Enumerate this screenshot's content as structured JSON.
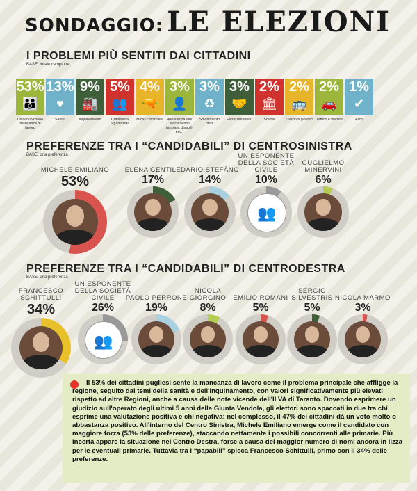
{
  "title": {
    "part1": "SONDAGGIO:",
    "part2": "LE ELEZIONI"
  },
  "problems": {
    "heading": "I PROBLEMI PIÙ SENTITI DAI CITTADINI",
    "base": "BASE: totale campione",
    "items": [
      {
        "pct": "53%",
        "label": "Disoccupazione mancanza di lavoro",
        "color": "#9bb63a",
        "icon": "people-icon",
        "glyph": "👪"
      },
      {
        "pct": "13%",
        "label": "Sanità",
        "color": "#6fb2c9",
        "icon": "heart-icon",
        "glyph": "♥"
      },
      {
        "pct": "9%",
        "label": "Inquinamento",
        "color": "#3f5f3a",
        "icon": "factory-icon",
        "glyph": "🏭"
      },
      {
        "pct": "5%",
        "label": "Criminalità organizzata",
        "color": "#d0332d",
        "icon": "crowd-icon",
        "glyph": "👥"
      },
      {
        "pct": "4%",
        "label": "Micro-criminalità",
        "color": "#e8b52a",
        "icon": "gun-icon",
        "glyph": "🔫"
      },
      {
        "pct": "3%",
        "label": "Assistenza alle fasce deboli (anziani, disabili, ecc.)",
        "color": "#9bb63a",
        "icon": "person-icon",
        "glyph": "👤"
      },
      {
        "pct": "3%",
        "label": "Smaltimento rifiuti",
        "color": "#6fb2c9",
        "icon": "recycle-icon",
        "glyph": "♻"
      },
      {
        "pct": "3%",
        "label": "Extracomunitari",
        "color": "#3f5f3a",
        "icon": "handshake-icon",
        "glyph": "🤝"
      },
      {
        "pct": "2%",
        "label": "Scuola",
        "color": "#d0332d",
        "icon": "building-icon",
        "glyph": "🏛"
      },
      {
        "pct": "2%",
        "label": "Trasporti pubblici",
        "color": "#e8b52a",
        "icon": "bus-icon",
        "glyph": "🚌"
      },
      {
        "pct": "2%",
        "label": "Traffico e viabilità",
        "color": "#9bb63a",
        "icon": "car-icon",
        "glyph": "🚗"
      },
      {
        "pct": "1%",
        "label": "Altro",
        "color": "#6fb2c9",
        "icon": "check-icon",
        "glyph": "✔"
      }
    ]
  },
  "centrosinistra": {
    "heading": "PREFERENZE TRA I “CANDIDABILI” DI CENTROSINISTRA",
    "base": "BASE: una preferenza",
    "candidates": [
      {
        "name": "Michele Emiliano",
        "pct": "53%",
        "value": 53,
        "color": "#d9534f"
      },
      {
        "name": "Elena Gentile",
        "pct": "17%",
        "value": 17,
        "color": "#3f5f3a"
      },
      {
        "name": "Dario Stefàno",
        "pct": "14%",
        "value": 14,
        "color": "#a9d0de"
      },
      {
        "name": "Un esponente della società civile",
        "pct": "10%",
        "value": 10,
        "color": "#999999"
      },
      {
        "name": "Guglielmo Minervini",
        "pct": "6%",
        "value": 6,
        "color": "#b5cc54"
      }
    ]
  },
  "centrodestra": {
    "heading": "PREFERENZE TRA I “CANDIDABILI” DI CENTRODESTRA",
    "base": "BASE: una preferenza",
    "candidates": [
      {
        "name": "Francesco Schittulli",
        "pct": "34%",
        "value": 34,
        "color": "#e8c12a"
      },
      {
        "name": "Un esponente della società civile",
        "pct": "26%",
        "value": 26,
        "color": "#999999"
      },
      {
        "name": "Paolo Perrone",
        "pct": "19%",
        "value": 19,
        "color": "#a9d0de"
      },
      {
        "name": "Nicola Giorgino",
        "pct": "8%",
        "value": 8,
        "color": "#b5cc54"
      },
      {
        "name": "Emilio Romani",
        "pct": "5%",
        "value": 5,
        "color": "#d9534f"
      },
      {
        "name": "Sergio Silvestris",
        "pct": "5%",
        "value": 5,
        "color": "#3f5f3a"
      },
      {
        "name": "Nicola Marmo",
        "pct": "3%",
        "value": 3,
        "color": "#d9534f"
      }
    ]
  },
  "summary": {
    "text": "Il 53% dei cittadini pugliesi sente la mancanza di lavoro come il problema principale che affligge la regione, seguito dai temi della sanità e dell'inquinamento, con valori significativamente più elevati rispetto ad altre Regioni, anche a causa delle note vicende dell'ILVA di Taranto. Dovendo esprimere un giudizio sull'operato degli ultimi 5 anni della Giunta Vendola, gli elettori sono spaccati in due tra chi esprime una valutazione positiva e chi negativa: nel complesso, il 47% dei cittadini dà un voto molto o abbastanza positivo. All'interno del Centro Sinistra, Michele Emiliano emerge come il candidato con maggiore forza (53% delle preferenze), staccando nettamente i possibili concorrenti alle primarie. Più incerta appare la situazione nel Centro Destra, forse a causa del maggior numero di nomi ancora in lizza per le eventuali primarie. Tuttavia tra i “papabili” spicca Francesco Schittulli, primo con il 34% delle preferenze."
  }
}
